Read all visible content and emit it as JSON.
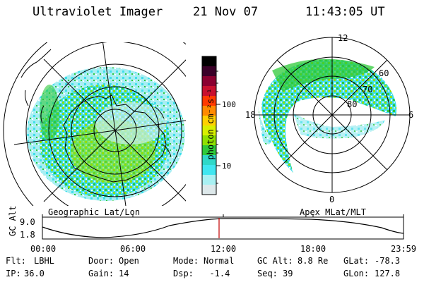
{
  "title": {
    "instrument": "Ultraviolet Imager",
    "date": "21 Nov 07",
    "time": "11:43:05 UT"
  },
  "colorbar": {
    "label": "photon cm⁻²s⁻¹",
    "ticks": [
      "100",
      "10"
    ],
    "colors": [
      "#000000",
      "#3a0028",
      "#8a0030",
      "#c8102e",
      "#ff3a00",
      "#ff8a00",
      "#ffd000",
      "#d8ef00",
      "#8fe000",
      "#2fc93a",
      "#30d8c8",
      "#40e6f0",
      "#a8f0f2",
      "#dde8ea"
    ]
  },
  "left_panel": {
    "caption": "Geographic Lat/Lon"
  },
  "right_panel": {
    "caption": "Apex MLat/MLT",
    "mlt_labels": {
      "top": "12",
      "left": "18",
      "right": "6",
      "bottom": "0"
    },
    "lat_labels": [
      "60",
      "70",
      "80"
    ]
  },
  "timeline": {
    "ylabel": "GC Alt",
    "yticks": [
      "9.0",
      "1.8"
    ],
    "xticks": [
      "00:00",
      "06:00",
      "12:00",
      "18:00",
      "23:59"
    ],
    "current_marker_color": "#c00000"
  },
  "info": {
    "row1": [
      {
        "label": "Flt:",
        "value": "LBHL"
      },
      {
        "label": "Door:",
        "value": "Open"
      },
      {
        "label": "Mode:",
        "value": "Normal"
      },
      {
        "label": "GC Alt:",
        "value": "8.8 Re"
      },
      {
        "label": "GLat:",
        "value": "-78.3"
      }
    ],
    "row2": [
      {
        "label": "IP:",
        "value": "36.0"
      },
      {
        "label": "Gain:",
        "value": "14"
      },
      {
        "label": "Dsp:",
        "value": "  -1.4"
      },
      {
        "label": "Seq:",
        "value": "39"
      },
      {
        "label": "GLon:",
        "value": "127.8"
      }
    ]
  }
}
